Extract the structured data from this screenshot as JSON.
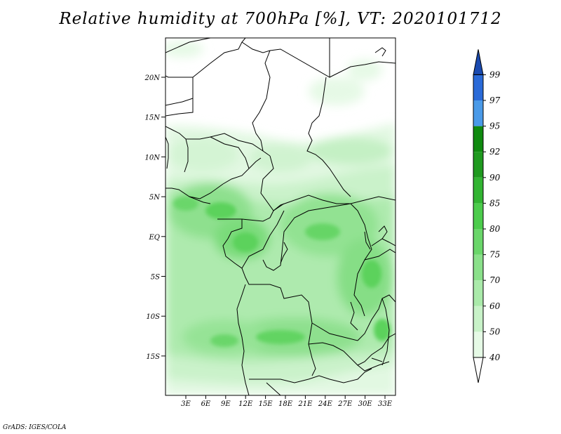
{
  "title": "Relative humidity at 700hPa [%], VT: 2020101712",
  "credit": "GrADS: IGES/COLA",
  "map": {
    "lat_labels": [
      "20N",
      "15N",
      "10N",
      "5N",
      "EQ",
      "5S",
      "10S",
      "15S"
    ],
    "lon_labels": [
      "3E",
      "6E",
      "9E",
      "12E",
      "15E",
      "18E",
      "21E",
      "24E",
      "27E",
      "30E",
      "33E"
    ]
  },
  "colorbar": {
    "levels": [
      "40",
      "50",
      "60",
      "70",
      "75",
      "80",
      "85",
      "90",
      "92",
      "95",
      "97",
      "99"
    ],
    "colors": [
      "#ffffff",
      "#e6fae6",
      "#c8f2c8",
      "#aaeaaa",
      "#8ae08a",
      "#6ad66a",
      "#4ccc4c",
      "#32b432",
      "#1f9a1f",
      "#0f8a0f",
      "#4a9ae8",
      "#2a6ad8",
      "#1a4ab0"
    ]
  }
}
